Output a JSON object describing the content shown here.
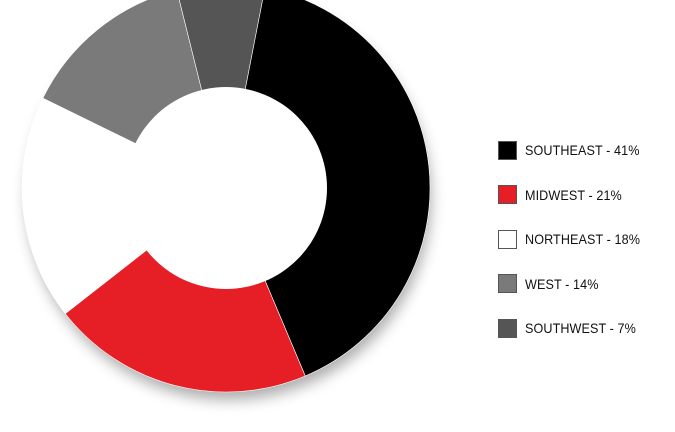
{
  "chart_data": {
    "type": "pie",
    "categories": [
      "SOUTHEAST",
      "MIDWEST",
      "NORTHEAST",
      "WEST",
      "SOUTHWEST"
    ],
    "values": [
      41,
      21,
      18,
      14,
      7
    ],
    "colors": [
      "#000000",
      "#e61e25",
      "#ffffff",
      "#7a7a7a",
      "#555555"
    ],
    "legend": [
      {
        "label": "SOUTHEAST - 41%",
        "color": "#000000"
      },
      {
        "label": "MIDWEST - 21%",
        "color": "#e61e25"
      },
      {
        "label": "NORTHEAST - 18%",
        "color": "#ffffff"
      },
      {
        "label": "WEST - 14%",
        "color": "#7a7a7a"
      },
      {
        "label": "SOUTHWEST - 7%",
        "color": "#555555"
      }
    ],
    "donut": true,
    "legend_position": "right",
    "title": "",
    "xlabel": "",
    "ylabel": ""
  }
}
